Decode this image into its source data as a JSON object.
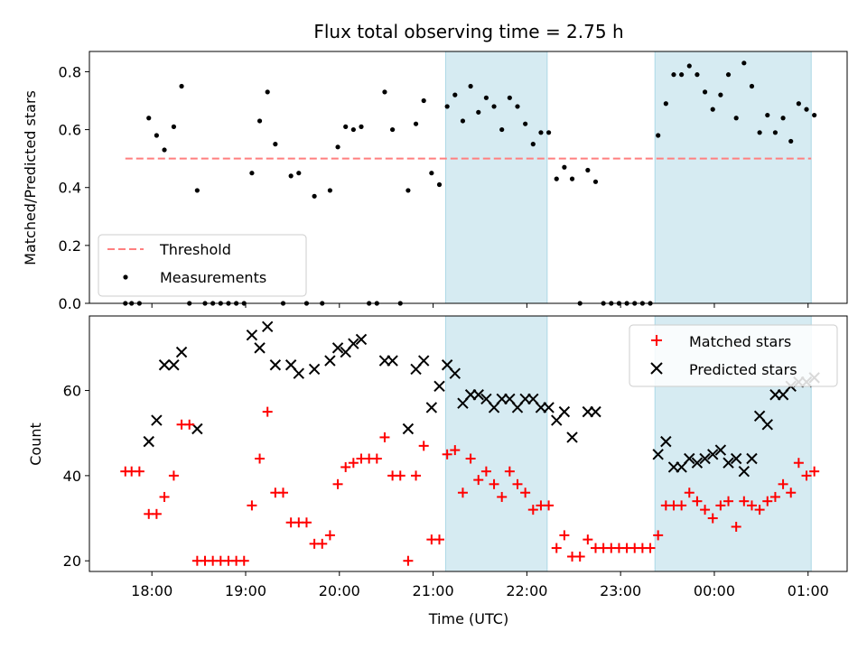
{
  "chart_data": [
    {
      "type": "scatter",
      "title": "Flux total observing time = 2.75 h",
      "xlabel": "",
      "ylabel": "Matched/Predicted stars",
      "ylim": [
        0,
        0.87
      ],
      "yticks": [
        "0.0",
        "0.2",
        "0.4",
        "0.6",
        "0.8"
      ],
      "threshold": {
        "name": "Threshold",
        "value": 0.5,
        "x_range": [
          "17:43",
          "01:02"
        ],
        "color": "#ff7f7f"
      },
      "legend": {
        "placement": "lower-left",
        "entries": [
          "Threshold",
          "Measurements"
        ]
      },
      "series": [
        {
          "name": "Measurements",
          "color": "#000000",
          "marker": "dot",
          "points": [
            [
              "17:43",
              0
            ],
            [
              "17:47",
              0
            ],
            [
              "17:52",
              0
            ],
            [
              "17:58",
              0.64
            ],
            [
              "18:03",
              0.58
            ],
            [
              "18:08",
              0.53
            ],
            [
              "18:14",
              0.61
            ],
            [
              "18:19",
              0.75
            ],
            [
              "18:24",
              0
            ],
            [
              "18:29",
              0.39
            ],
            [
              "18:34",
              0
            ],
            [
              "18:39",
              0
            ],
            [
              "18:44",
              0
            ],
            [
              "18:49",
              0
            ],
            [
              "18:54",
              0
            ],
            [
              "18:59",
              0
            ],
            [
              "19:04",
              0.45
            ],
            [
              "19:09",
              0.63
            ],
            [
              "19:14",
              0.73
            ],
            [
              "19:19",
              0.55
            ],
            [
              "19:24",
              0
            ],
            [
              "19:29",
              0.44
            ],
            [
              "19:34",
              0.45
            ],
            [
              "19:39",
              0
            ],
            [
              "19:44",
              0.37
            ],
            [
              "19:49",
              0
            ],
            [
              "19:54",
              0.39
            ],
            [
              "19:59",
              0.54
            ],
            [
              "20:04",
              0.61
            ],
            [
              "20:09",
              0.6
            ],
            [
              "20:14",
              0.61
            ],
            [
              "20:19",
              0
            ],
            [
              "20:24",
              0
            ],
            [
              "20:29",
              0.73
            ],
            [
              "20:34",
              0.6
            ],
            [
              "20:39",
              0
            ],
            [
              "20:44",
              0.39
            ],
            [
              "20:49",
              0.62
            ],
            [
              "20:54",
              0.7
            ],
            [
              "20:59",
              0.45
            ],
            [
              "21:04",
              0.41
            ],
            [
              "21:09",
              0.68
            ],
            [
              "21:14",
              0.72
            ],
            [
              "21:19",
              0.63
            ],
            [
              "21:24",
              0.75
            ],
            [
              "21:29",
              0.66
            ],
            [
              "21:34",
              0.71
            ],
            [
              "21:39",
              0.68
            ],
            [
              "21:44",
              0.6
            ],
            [
              "21:49",
              0.71
            ],
            [
              "21:54",
              0.68
            ],
            [
              "21:59",
              0.62
            ],
            [
              "22:04",
              0.55
            ],
            [
              "22:09",
              0.59
            ],
            [
              "22:14",
              0.59
            ],
            [
              "22:19",
              0.43
            ],
            [
              "22:24",
              0.47
            ],
            [
              "22:29",
              0.43
            ],
            [
              "22:34",
              0
            ],
            [
              "22:39",
              0.46
            ],
            [
              "22:44",
              0.42
            ],
            [
              "22:49",
              0
            ],
            [
              "22:54",
              0
            ],
            [
              "22:59",
              0
            ],
            [
              "23:04",
              0
            ],
            [
              "23:09",
              0
            ],
            [
              "23:14",
              0
            ],
            [
              "23:19",
              0
            ],
            [
              "23:24",
              0.58
            ],
            [
              "23:29",
              0.69
            ],
            [
              "23:34",
              0.79
            ],
            [
              "23:39",
              0.79
            ],
            [
              "23:44",
              0.82
            ],
            [
              "23:49",
              0.79
            ],
            [
              "23:54",
              0.73
            ],
            [
              "23:59",
              0.67
            ],
            [
              "00:04",
              0.72
            ],
            [
              "00:09",
              0.79
            ],
            [
              "00:14",
              0.64
            ],
            [
              "00:19",
              0.83
            ],
            [
              "00:24",
              0.75
            ],
            [
              "00:29",
              0.59
            ],
            [
              "00:34",
              0.65
            ],
            [
              "00:39",
              0.59
            ],
            [
              "00:44",
              0.64
            ],
            [
              "00:49",
              0.56
            ],
            [
              "00:54",
              0.69
            ],
            [
              "00:59",
              0.67
            ],
            [
              "01:04",
              0.65
            ]
          ]
        }
      ],
      "shaded_intervals": [
        [
          "21:08",
          "22:13"
        ],
        [
          "23:22",
          "01:02"
        ]
      ],
      "shade_color": "#add8e6"
    },
    {
      "type": "scatter",
      "xlabel": "Time (UTC)",
      "ylabel": "Count",
      "ylim": [
        17.5,
        77.5
      ],
      "yticks": [
        "20",
        "40",
        "60"
      ],
      "xticks": [
        "18:00",
        "19:00",
        "20:00",
        "21:00",
        "22:00",
        "23:00",
        "00:00",
        "01:00"
      ],
      "legend": {
        "placement": "top-right",
        "entries": [
          "Matched stars",
          "Predicted stars"
        ]
      },
      "series": [
        {
          "name": "Matched stars",
          "color": "#ff0000",
          "marker": "plus",
          "points": [
            [
              "17:43",
              41
            ],
            [
              "17:47",
              41
            ],
            [
              "17:52",
              41
            ],
            [
              "17:58",
              31
            ],
            [
              "18:03",
              31
            ],
            [
              "18:08",
              35
            ],
            [
              "18:14",
              40
            ],
            [
              "18:19",
              52
            ],
            [
              "18:24",
              52
            ],
            [
              "18:29",
              20
            ],
            [
              "18:34",
              20
            ],
            [
              "18:39",
              20
            ],
            [
              "18:44",
              20
            ],
            [
              "18:49",
              20
            ],
            [
              "18:54",
              20
            ],
            [
              "18:59",
              20
            ],
            [
              "19:04",
              33
            ],
            [
              "19:09",
              44
            ],
            [
              "19:14",
              55
            ],
            [
              "19:19",
              36
            ],
            [
              "19:24",
              36
            ],
            [
              "19:29",
              29
            ],
            [
              "19:34",
              29
            ],
            [
              "19:39",
              29
            ],
            [
              "19:44",
              24
            ],
            [
              "19:49",
              24
            ],
            [
              "19:54",
              26
            ],
            [
              "19:59",
              38
            ],
            [
              "20:04",
              42
            ],
            [
              "20:09",
              43
            ],
            [
              "20:14",
              44
            ],
            [
              "20:19",
              44
            ],
            [
              "20:24",
              44
            ],
            [
              "20:29",
              49
            ],
            [
              "20:34",
              40
            ],
            [
              "20:39",
              40
            ],
            [
              "20:44",
              20
            ],
            [
              "20:49",
              40
            ],
            [
              "20:54",
              47
            ],
            [
              "20:59",
              25
            ],
            [
              "21:04",
              25
            ],
            [
              "21:09",
              45
            ],
            [
              "21:14",
              46
            ],
            [
              "21:19",
              36
            ],
            [
              "21:24",
              44
            ],
            [
              "21:29",
              39
            ],
            [
              "21:34",
              41
            ],
            [
              "21:39",
              38
            ],
            [
              "21:44",
              35
            ],
            [
              "21:49",
              41
            ],
            [
              "21:54",
              38
            ],
            [
              "21:59",
              36
            ],
            [
              "22:04",
              32
            ],
            [
              "22:09",
              33
            ],
            [
              "22:14",
              33
            ],
            [
              "22:19",
              23
            ],
            [
              "22:24",
              26
            ],
            [
              "22:29",
              21
            ],
            [
              "22:34",
              21
            ],
            [
              "22:39",
              25
            ],
            [
              "22:44",
              23
            ],
            [
              "22:49",
              23
            ],
            [
              "22:54",
              23
            ],
            [
              "22:59",
              23
            ],
            [
              "23:04",
              23
            ],
            [
              "23:09",
              23
            ],
            [
              "23:14",
              23
            ],
            [
              "23:19",
              23
            ],
            [
              "23:24",
              26
            ],
            [
              "23:29",
              33
            ],
            [
              "23:34",
              33
            ],
            [
              "23:39",
              33
            ],
            [
              "23:44",
              36
            ],
            [
              "23:49",
              34
            ],
            [
              "23:54",
              32
            ],
            [
              "23:59",
              30
            ],
            [
              "00:04",
              33
            ],
            [
              "00:09",
              34
            ],
            [
              "00:14",
              28
            ],
            [
              "00:19",
              34
            ],
            [
              "00:24",
              33
            ],
            [
              "00:29",
              32
            ],
            [
              "00:34",
              34
            ],
            [
              "00:39",
              35
            ],
            [
              "00:44",
              38
            ],
            [
              "00:49",
              36
            ],
            [
              "00:54",
              43
            ],
            [
              "00:59",
              40
            ],
            [
              "01:04",
              41
            ]
          ]
        },
        {
          "name": "Predicted stars",
          "color": "#000000",
          "marker": "x",
          "points": [
            [
              "17:58",
              48
            ],
            [
              "18:03",
              53
            ],
            [
              "18:08",
              66
            ],
            [
              "18:14",
              66
            ],
            [
              "18:19",
              69
            ],
            [
              "18:29",
              51
            ],
            [
              "19:04",
              73
            ],
            [
              "19:09",
              70
            ],
            [
              "19:14",
              75
            ],
            [
              "19:19",
              66
            ],
            [
              "19:29",
              66
            ],
            [
              "19:34",
              64
            ],
            [
              "19:44",
              65
            ],
            [
              "19:54",
              67
            ],
            [
              "19:59",
              70
            ],
            [
              "20:04",
              69
            ],
            [
              "20:09",
              71
            ],
            [
              "20:14",
              72
            ],
            [
              "20:29",
              67
            ],
            [
              "20:34",
              67
            ],
            [
              "20:44",
              51
            ],
            [
              "20:49",
              65
            ],
            [
              "20:54",
              67
            ],
            [
              "20:59",
              56
            ],
            [
              "21:04",
              61
            ],
            [
              "21:09",
              66
            ],
            [
              "21:14",
              64
            ],
            [
              "21:19",
              57
            ],
            [
              "21:24",
              59
            ],
            [
              "21:29",
              59
            ],
            [
              "21:34",
              58
            ],
            [
              "21:39",
              56
            ],
            [
              "21:44",
              58
            ],
            [
              "21:49",
              58
            ],
            [
              "21:54",
              56
            ],
            [
              "21:59",
              58
            ],
            [
              "22:04",
              58
            ],
            [
              "22:09",
              56
            ],
            [
              "22:14",
              56
            ],
            [
              "22:19",
              53
            ],
            [
              "22:24",
              55
            ],
            [
              "22:29",
              49
            ],
            [
              "22:39",
              55
            ],
            [
              "22:44",
              55
            ],
            [
              "23:24",
              45
            ],
            [
              "23:29",
              48
            ],
            [
              "23:34",
              42
            ],
            [
              "23:39",
              42
            ],
            [
              "23:44",
              44
            ],
            [
              "23:49",
              43
            ],
            [
              "23:54",
              44
            ],
            [
              "23:59",
              45
            ],
            [
              "00:04",
              46
            ],
            [
              "00:09",
              43
            ],
            [
              "00:14",
              44
            ],
            [
              "00:19",
              41
            ],
            [
              "00:24",
              44
            ],
            [
              "00:29",
              54
            ],
            [
              "00:34",
              52
            ],
            [
              "00:39",
              59
            ],
            [
              "00:44",
              59
            ],
            [
              "00:49",
              61
            ],
            [
              "00:54",
              62
            ],
            [
              "00:59",
              62
            ],
            [
              "01:04",
              63
            ]
          ]
        }
      ],
      "shaded_intervals": [
        [
          "21:08",
          "22:13"
        ],
        [
          "23:22",
          "01:02"
        ]
      ],
      "shade_color": "#add8e6"
    }
  ]
}
